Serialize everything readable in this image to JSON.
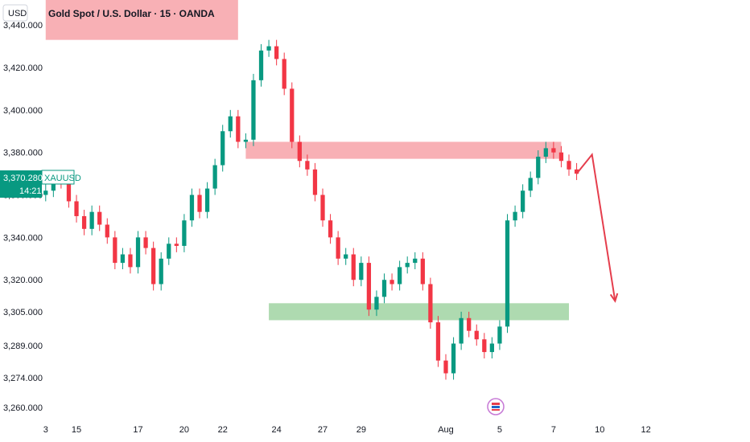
{
  "chart_data": {
    "type": "candlestick",
    "title": "Gold Spot / U.S. Dollar · 15 · OANDA",
    "currency": "USD",
    "symbol": "XAUUSD",
    "last_price": "3,370.280",
    "countdown": "14:21",
    "ylim": [
      3255,
      3448
    ],
    "y_ticks": [
      {
        "value": 3440,
        "label": "3,440.000"
      },
      {
        "value": 3420,
        "label": "3,420.000"
      },
      {
        "value": 3400,
        "label": "3,400.000"
      },
      {
        "value": 3380,
        "label": "3,380.000"
      },
      {
        "value": 3360,
        "label": "3,360.000"
      },
      {
        "value": 3340,
        "label": "3,340.000"
      },
      {
        "value": 3320,
        "label": "3,320.000"
      },
      {
        "value": 3305,
        "label": "3,305.000"
      },
      {
        "value": 3289,
        "label": "3,289.000"
      },
      {
        "value": 3274,
        "label": "3,274.000"
      },
      {
        "value": 3260,
        "label": "3,260.000"
      }
    ],
    "x_ticks": [
      {
        "label": "3",
        "index": 0
      },
      {
        "label": "15",
        "index": 4
      },
      {
        "label": "17",
        "index": 12
      },
      {
        "label": "20",
        "index": 18
      },
      {
        "label": "22",
        "index": 23
      },
      {
        "label": "24",
        "index": 30
      },
      {
        "label": "27",
        "index": 36
      },
      {
        "label": "29",
        "index": 41
      },
      {
        "label": "Aug",
        "index": 52
      },
      {
        "label": "5",
        "index": 59
      },
      {
        "label": "7",
        "index": 66
      },
      {
        "label": "10",
        "index": 72
      },
      {
        "label": "12",
        "index": 78
      }
    ],
    "x_range": [
      -0.5,
      84
    ],
    "series": [
      {
        "values": [
          3362,
          3368,
          3366,
          3357,
          3350,
          3344,
          3352,
          3346,
          3340,
          3328,
          3332,
          3326,
          3340,
          3335,
          3318,
          3330,
          3337,
          3336,
          3348,
          3360,
          3352,
          3363,
          3374,
          3390,
          3397,
          3385,
          3386,
          3414,
          3428,
          3430,
          3424,
          3410,
          3385,
          3376,
          3372,
          3360,
          3348,
          3340,
          3330,
          3332,
          3320,
          3328,
          3306,
          3312,
          3320,
          3318,
          3326,
          3328,
          3330,
          3318,
          3300,
          3282,
          3276,
          3290,
          3302,
          3296,
          3292,
          3286,
          3290,
          3298,
          3348,
          3352,
          3362,
          3368,
          3378,
          3382,
          3380,
          3376,
          3372,
          3370
        ]
      }
    ],
    "zones": [
      {
        "name": "resistance-top",
        "color": "#f7a7ad",
        "y_from": 3433,
        "y_to": 3453,
        "x_from": 0,
        "x_to": 25
      },
      {
        "name": "resistance-mid",
        "color": "#f7a7ad",
        "y_from": 3377,
        "y_to": 3385,
        "x_from": 26,
        "x_to": 67
      },
      {
        "name": "support",
        "color": "#a5d6a7",
        "y_from": 3301,
        "y_to": 3309,
        "x_from": 29,
        "x_to": 68
      }
    ],
    "projection": {
      "color": "#e53e4d",
      "points": [
        [
          69,
          3370
        ],
        [
          71,
          3379
        ],
        [
          74,
          3310
        ]
      ]
    },
    "colors": {
      "up": "#089981",
      "down": "#f23645",
      "axis_text": "#131722",
      "tag": "#089981"
    }
  },
  "watermark": {
    "icon": "tradingview-flag-icon"
  }
}
